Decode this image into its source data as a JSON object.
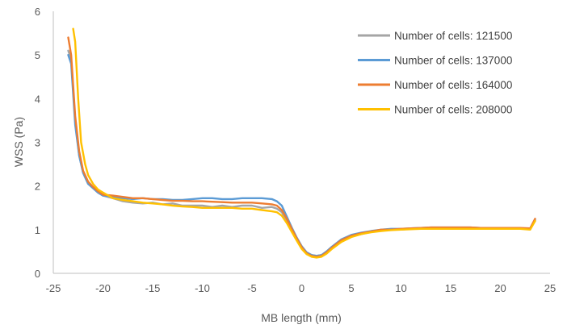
{
  "chart_data": {
    "type": "line",
    "title": "",
    "xlabel": "MB length (mm)",
    "ylabel": "WSS (Pa)",
    "xlim": [
      -25,
      25
    ],
    "ylim": [
      0,
      6
    ],
    "xticks": [
      -25,
      -20,
      -15,
      -10,
      -5,
      0,
      5,
      10,
      15,
      20,
      25
    ],
    "yticks": [
      0,
      1,
      2,
      3,
      4,
      5,
      6
    ],
    "grid": false,
    "legend_position": "top-right",
    "series": [
      {
        "name": "Number of cells: 121500",
        "color": "#a5a5a5",
        "x": [
          -23.5,
          -23.2,
          -22.8,
          -22.4,
          -22,
          -21.5,
          -21,
          -20.5,
          -20,
          -19,
          -18,
          -17,
          -16,
          -15,
          -14,
          -13,
          -12,
          -11,
          -10,
          -9,
          -8,
          -7,
          -6,
          -5,
          -4,
          -3,
          -2.5,
          -2,
          -1.5,
          -1,
          -0.5,
          0,
          0.5,
          1,
          1.5,
          2,
          2.5,
          3,
          4,
          5,
          6,
          7,
          8,
          9,
          10,
          11,
          12,
          13,
          14,
          15,
          16,
          17,
          18,
          19,
          20,
          21,
          22,
          23,
          23.5
        ],
        "y": [
          5.1,
          4.9,
          3.5,
          2.7,
          2.3,
          2.05,
          1.95,
          1.85,
          1.78,
          1.72,
          1.65,
          1.62,
          1.6,
          1.62,
          1.58,
          1.6,
          1.55,
          1.55,
          1.55,
          1.52,
          1.55,
          1.52,
          1.55,
          1.55,
          1.5,
          1.52,
          1.48,
          1.4,
          1.2,
          1.0,
          0.8,
          0.62,
          0.48,
          0.42,
          0.4,
          0.42,
          0.5,
          0.6,
          0.75,
          0.85,
          0.9,
          0.95,
          0.98,
          1.0,
          1.0,
          1.02,
          1.03,
          1.03,
          1.04,
          1.04,
          1.04,
          1.03,
          1.03,
          1.03,
          1.03,
          1.02,
          1.02,
          1.02,
          1.2
        ]
      },
      {
        "name": "Number of cells: 137000",
        "color": "#5b9bd5",
        "x": [
          -23.5,
          -23.2,
          -22.8,
          -22.4,
          -22,
          -21.5,
          -21,
          -20.5,
          -20,
          -19,
          -18,
          -17,
          -16,
          -15,
          -14,
          -13,
          -12,
          -11,
          -10,
          -9,
          -8,
          -7,
          -6,
          -5,
          -4,
          -3,
          -2.5,
          -2,
          -1.5,
          -1,
          -0.5,
          0,
          0.5,
          1,
          1.5,
          2,
          2.5,
          3,
          4,
          5,
          6,
          7,
          8,
          9,
          10,
          11,
          12,
          13,
          14,
          15,
          16,
          17,
          18,
          19,
          20,
          21,
          22,
          23,
          23.5
        ],
        "y": [
          5.0,
          4.8,
          3.4,
          2.7,
          2.3,
          2.05,
          1.95,
          1.85,
          1.78,
          1.75,
          1.72,
          1.7,
          1.72,
          1.7,
          1.7,
          1.68,
          1.68,
          1.7,
          1.72,
          1.72,
          1.7,
          1.7,
          1.72,
          1.72,
          1.72,
          1.7,
          1.65,
          1.55,
          1.3,
          1.05,
          0.82,
          0.62,
          0.48,
          0.42,
          0.4,
          0.42,
          0.5,
          0.6,
          0.78,
          0.88,
          0.93,
          0.97,
          1.0,
          1.02,
          1.02,
          1.03,
          1.04,
          1.05,
          1.05,
          1.05,
          1.05,
          1.05,
          1.04,
          1.04,
          1.04,
          1.04,
          1.03,
          1.03,
          1.22
        ]
      },
      {
        "name": "Number of cells: 164000",
        "color": "#ed7d31",
        "x": [
          -23.5,
          -23.2,
          -22.8,
          -22.4,
          -22,
          -21.5,
          -21,
          -20.5,
          -20,
          -19,
          -18,
          -17,
          -16,
          -15,
          -14,
          -13,
          -12,
          -11,
          -10,
          -9,
          -8,
          -7,
          -6,
          -5,
          -4,
          -3,
          -2.5,
          -2,
          -1.5,
          -1,
          -0.5,
          0,
          0.5,
          1,
          1.5,
          2,
          2.5,
          3,
          4,
          5,
          6,
          7,
          8,
          9,
          10,
          11,
          12,
          13,
          14,
          15,
          16,
          17,
          18,
          19,
          20,
          21,
          22,
          23,
          23.5
        ],
        "y": [
          5.4,
          5.0,
          3.6,
          2.8,
          2.35,
          2.1,
          1.98,
          1.88,
          1.8,
          1.78,
          1.75,
          1.72,
          1.72,
          1.7,
          1.68,
          1.66,
          1.66,
          1.65,
          1.65,
          1.64,
          1.63,
          1.62,
          1.62,
          1.62,
          1.6,
          1.58,
          1.55,
          1.45,
          1.25,
          1.02,
          0.8,
          0.6,
          0.46,
          0.4,
          0.38,
          0.4,
          0.48,
          0.58,
          0.76,
          0.86,
          0.92,
          0.96,
          1.0,
          1.0,
          1.02,
          1.03,
          1.04,
          1.05,
          1.05,
          1.05,
          1.05,
          1.05,
          1.04,
          1.04,
          1.04,
          1.04,
          1.04,
          1.03,
          1.25
        ]
      },
      {
        "name": "Number of cells: 208000",
        "color": "#ffc000",
        "x": [
          -23,
          -22.8,
          -22.5,
          -22.2,
          -21.8,
          -21.5,
          -21,
          -20.5,
          -20,
          -19,
          -18,
          -17,
          -16,
          -15,
          -14,
          -13,
          -12,
          -11,
          -10,
          -9,
          -8,
          -7,
          -6,
          -5,
          -4,
          -3,
          -2.5,
          -2,
          -1.5,
          -1,
          -0.5,
          0,
          0.5,
          1,
          1.5,
          2,
          2.5,
          3,
          4,
          5,
          6,
          7,
          8,
          9,
          10,
          11,
          12,
          13,
          14,
          15,
          16,
          17,
          18,
          19,
          20,
          21,
          22,
          23,
          23.5
        ],
        "y": [
          5.6,
          5.3,
          4.0,
          3.0,
          2.5,
          2.25,
          2.05,
          1.92,
          1.85,
          1.72,
          1.68,
          1.65,
          1.62,
          1.6,
          1.58,
          1.55,
          1.53,
          1.52,
          1.5,
          1.5,
          1.5,
          1.5,
          1.48,
          1.48,
          1.45,
          1.42,
          1.4,
          1.32,
          1.15,
          0.95,
          0.75,
          0.56,
          0.44,
          0.38,
          0.36,
          0.38,
          0.45,
          0.55,
          0.72,
          0.83,
          0.9,
          0.94,
          0.97,
          0.99,
          1.0,
          1.01,
          1.02,
          1.02,
          1.02,
          1.02,
          1.02,
          1.02,
          1.02,
          1.02,
          1.02,
          1.02,
          1.02,
          1.0,
          1.2
        ]
      }
    ]
  }
}
